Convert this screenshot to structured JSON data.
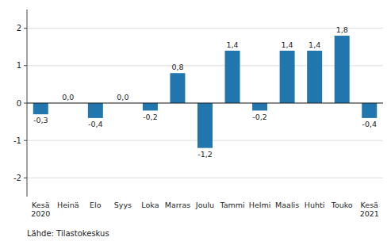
{
  "chart_data": {
    "type": "bar",
    "categories": [
      "Kesä\n2020",
      "Heinä",
      "Elo",
      "Syys",
      "Loka",
      "Marras",
      "Joulu",
      "Tammi",
      "Helmi",
      "Maalis",
      "Huhti",
      "Touko",
      "Kesä\n2021"
    ],
    "values": [
      -0.3,
      0.0,
      -0.4,
      0.0,
      -0.2,
      0.8,
      -1.2,
      1.4,
      -0.2,
      1.4,
      1.4,
      1.8,
      -0.4
    ],
    "value_labels": [
      "-0,3",
      "0,0",
      "-0,4",
      "0,0",
      "-0,2",
      "0,8",
      "-1,2",
      "1,4",
      "-0,2",
      "1,4",
      "1,4",
      "1,8",
      "-0,4"
    ],
    "data_labels": true,
    "color": "#2176ae",
    "ylim": [
      -2.5,
      2.5
    ],
    "yticks": [
      -2,
      -1,
      0,
      1,
      2
    ],
    "grid": true,
    "footer": "Lähde: Tilastokeskus"
  }
}
